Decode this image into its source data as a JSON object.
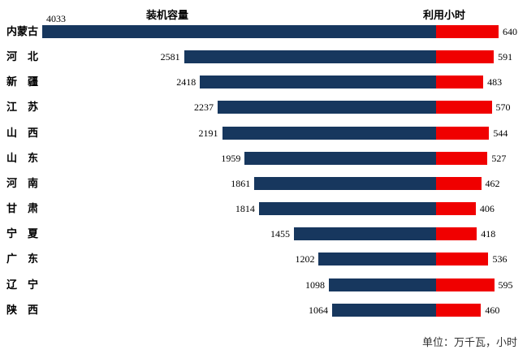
{
  "chart_data": {
    "type": "bar",
    "subtype": "bidirectional-horizontal",
    "left_title": "装机容量",
    "right_title": "利用小时",
    "footnote": "单位：万千瓦，小时",
    "categories": [
      "内蒙古",
      "河　北",
      "新　疆",
      "江　苏",
      "山　西",
      "山　东",
      "河　南",
      "甘　肃",
      "宁　夏",
      "广　东",
      "辽　宁",
      "陕　西"
    ],
    "series": [
      {
        "name": "装机容量",
        "color": "#17375E",
        "values": [
          4033,
          2581,
          2418,
          2237,
          2191,
          1959,
          1861,
          1814,
          1455,
          1202,
          1098,
          1064
        ]
      },
      {
        "name": "利用小时",
        "color": "#F00000",
        "values": [
          640,
          591,
          483,
          570,
          544,
          527,
          462,
          406,
          418,
          536,
          595,
          460
        ]
      }
    ],
    "value_labels": "shown",
    "grid": false,
    "axis_lines": false
  }
}
